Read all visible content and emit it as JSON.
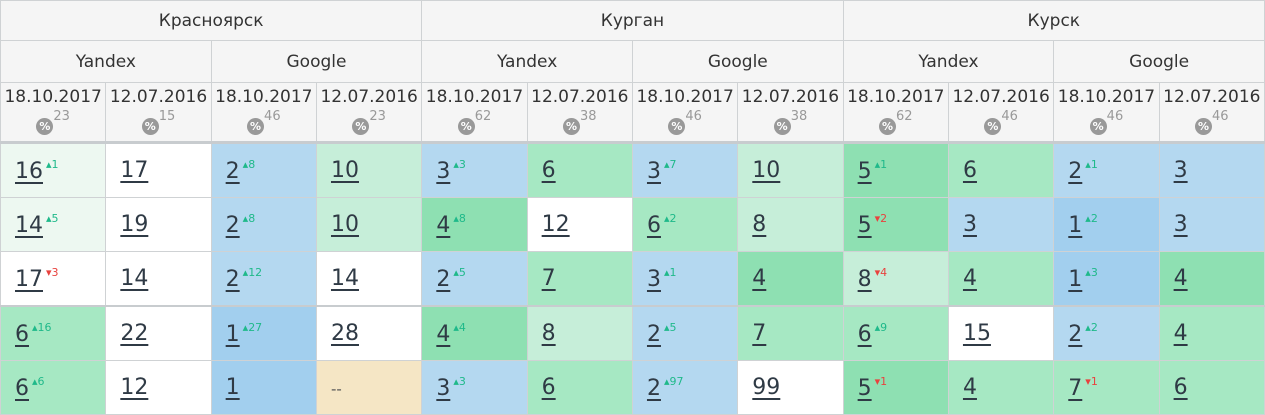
{
  "cities": [
    "Красноярск",
    "Курган",
    "Курск"
  ],
  "engines": [
    "Yandex",
    "Google",
    "Yandex",
    "Google",
    "Yandex",
    "Google"
  ],
  "columns": [
    {
      "date": "18.10.2017",
      "pct": "23"
    },
    {
      "date": "12.07.2016",
      "pct": "15"
    },
    {
      "date": "18.10.2017",
      "pct": "46"
    },
    {
      "date": "12.07.2016",
      "pct": "23"
    },
    {
      "date": "18.10.2017",
      "pct": "62"
    },
    {
      "date": "12.07.2016",
      "pct": "38"
    },
    {
      "date": "18.10.2017",
      "pct": "46"
    },
    {
      "date": "12.07.2016",
      "pct": "38"
    },
    {
      "date": "18.10.2017",
      "pct": "62"
    },
    {
      "date": "12.07.2016",
      "pct": "46"
    },
    {
      "date": "18.10.2017",
      "pct": "46"
    },
    {
      "date": "12.07.2016",
      "pct": "46"
    }
  ],
  "pct_icon": "%",
  "rows": [
    [
      {
        "v": "16",
        "c": "1",
        "d": "up",
        "bg": "g0"
      },
      {
        "v": "17",
        "bg": "w"
      },
      {
        "v": "2",
        "c": "8",
        "d": "up",
        "bg": "b1"
      },
      {
        "v": "10",
        "bg": "g2"
      },
      {
        "v": "3",
        "c": "3",
        "d": "up",
        "bg": "b1"
      },
      {
        "v": "6",
        "bg": "g3"
      },
      {
        "v": "3",
        "c": "7",
        "d": "up",
        "bg": "b1"
      },
      {
        "v": "10",
        "bg": "g2"
      },
      {
        "v": "5",
        "c": "1",
        "d": "up",
        "bg": "g4"
      },
      {
        "v": "6",
        "bg": "g3"
      },
      {
        "v": "2",
        "c": "1",
        "d": "up",
        "bg": "b1"
      },
      {
        "v": "3",
        "bg": "b1"
      }
    ],
    [
      {
        "v": "14",
        "c": "5",
        "d": "up",
        "bg": "g0"
      },
      {
        "v": "19",
        "bg": "w"
      },
      {
        "v": "2",
        "c": "8",
        "d": "up",
        "bg": "b1"
      },
      {
        "v": "10",
        "bg": "g2"
      },
      {
        "v": "4",
        "c": "8",
        "d": "up",
        "bg": "g4"
      },
      {
        "v": "12",
        "bg": "w"
      },
      {
        "v": "6",
        "c": "2",
        "d": "up",
        "bg": "g3"
      },
      {
        "v": "8",
        "bg": "g2"
      },
      {
        "v": "5",
        "c": "2",
        "d": "dn",
        "bg": "g4"
      },
      {
        "v": "3",
        "bg": "b1"
      },
      {
        "v": "1",
        "c": "2",
        "d": "up",
        "bg": "b2"
      },
      {
        "v": "3",
        "bg": "b1"
      }
    ],
    [
      {
        "v": "17",
        "c": "3",
        "d": "dn",
        "bg": "w"
      },
      {
        "v": "14",
        "bg": "w"
      },
      {
        "v": "2",
        "c": "12",
        "d": "up",
        "bg": "b1"
      },
      {
        "v": "14",
        "bg": "w"
      },
      {
        "v": "2",
        "c": "5",
        "d": "up",
        "bg": "b1"
      },
      {
        "v": "7",
        "bg": "g3"
      },
      {
        "v": "3",
        "c": "1",
        "d": "up",
        "bg": "b1"
      },
      {
        "v": "4",
        "bg": "g4"
      },
      {
        "v": "8",
        "c": "4",
        "d": "dn",
        "bg": "g2"
      },
      {
        "v": "4",
        "bg": "g3"
      },
      {
        "v": "1",
        "c": "3",
        "d": "up",
        "bg": "b2"
      },
      {
        "v": "4",
        "bg": "g4"
      }
    ],
    [
      {
        "v": "6",
        "c": "16",
        "d": "up",
        "bg": "g3"
      },
      {
        "v": "22",
        "bg": "w"
      },
      {
        "v": "1",
        "c": "27",
        "d": "up",
        "bg": "b2"
      },
      {
        "v": "28",
        "bg": "w"
      },
      {
        "v": "4",
        "c": "4",
        "d": "up",
        "bg": "g4"
      },
      {
        "v": "8",
        "bg": "g2"
      },
      {
        "v": "2",
        "c": "5",
        "d": "up",
        "bg": "b1"
      },
      {
        "v": "7",
        "bg": "g3"
      },
      {
        "v": "6",
        "c": "9",
        "d": "up",
        "bg": "g3"
      },
      {
        "v": "15",
        "bg": "w"
      },
      {
        "v": "2",
        "c": "2",
        "d": "up",
        "bg": "b1"
      },
      {
        "v": "4",
        "bg": "g3"
      }
    ],
    [
      {
        "v": "6",
        "c": "6",
        "d": "up",
        "bg": "g3"
      },
      {
        "v": "12",
        "bg": "w"
      },
      {
        "v": "1",
        "bg": "b2"
      },
      {
        "v": "--",
        "bg": "y",
        "nolink": true
      },
      {
        "v": "3",
        "c": "3",
        "d": "up",
        "bg": "b1"
      },
      {
        "v": "6",
        "bg": "g3"
      },
      {
        "v": "2",
        "c": "97",
        "d": "up",
        "bg": "b1"
      },
      {
        "v": "99",
        "bg": "w"
      },
      {
        "v": "5",
        "c": "1",
        "d": "dn",
        "bg": "g4"
      },
      {
        "v": "4",
        "bg": "g3"
      },
      {
        "v": "7",
        "c": "1",
        "d": "dn",
        "bg": "g3"
      },
      {
        "v": "6",
        "bg": "g3"
      }
    ]
  ]
}
